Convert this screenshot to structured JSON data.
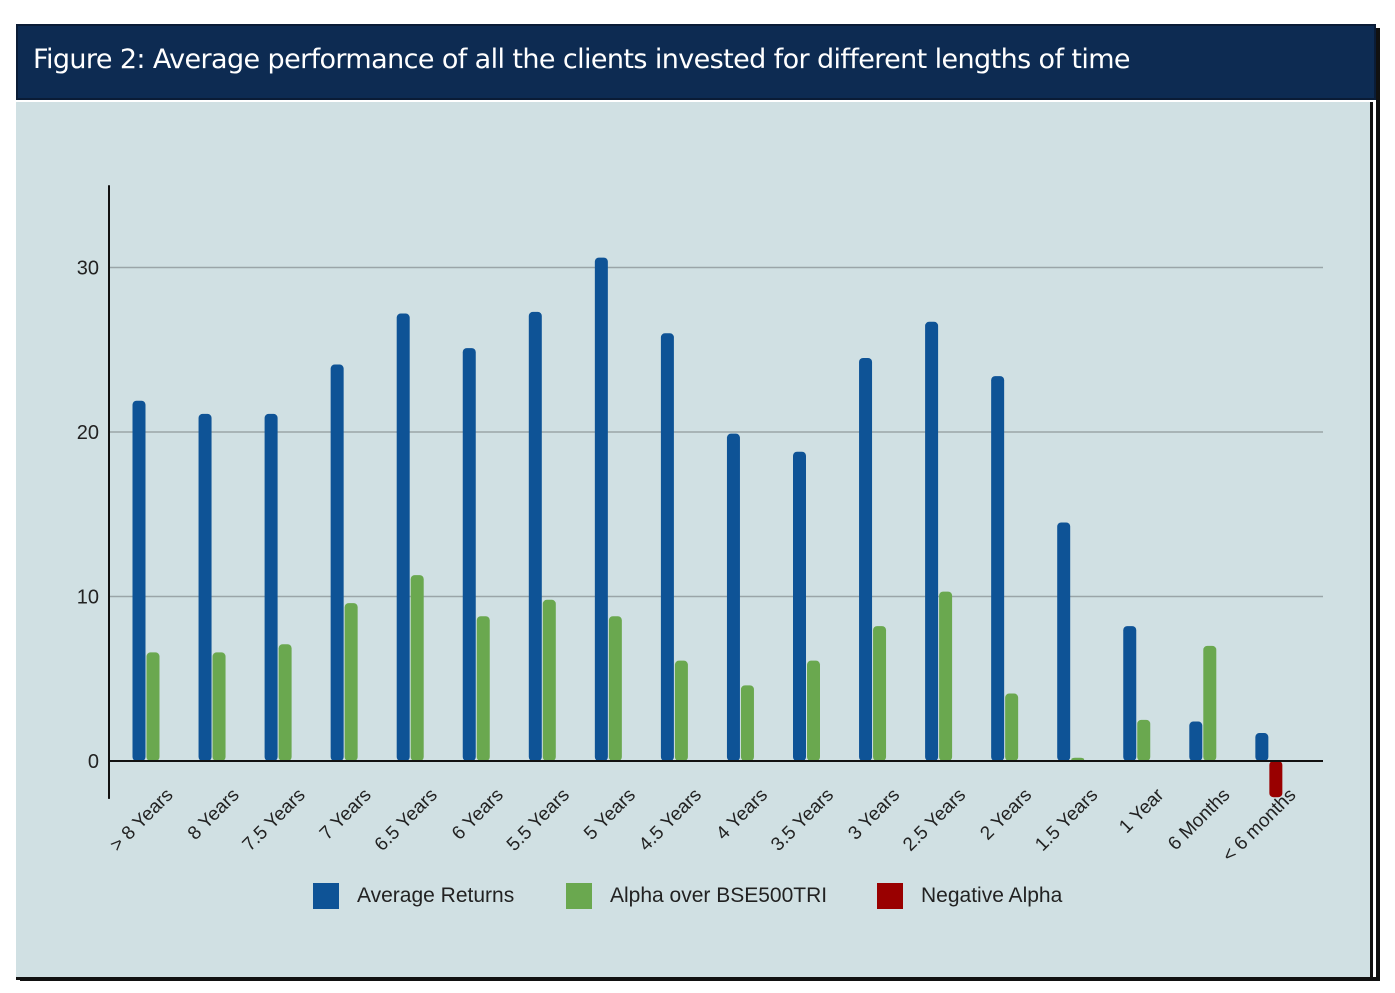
{
  "figure": {
    "title": "Figure 2:  Average performance of all the clients invested for different lengths of time"
  },
  "colors": {
    "average_returns": "#0e5396",
    "alpha": "#6aa84f",
    "negative_alpha": "#990000",
    "panel_background": "#d0e0e3",
    "title_background": "#0d2b52",
    "gridline": "#9aa5a8"
  },
  "chart_data": {
    "type": "bar",
    "title": "Figure 2:  Average performance of all the clients invested for different lengths of time",
    "xlabel": "",
    "ylabel": "",
    "ylim": [
      -2.3,
      35
    ],
    "yticks": [
      0,
      10,
      20,
      30
    ],
    "grid": true,
    "legend_position": "bottom",
    "categories": [
      "> 8 Years",
      "8 Years",
      "7.5 Years",
      "7 Years",
      "6.5 Years",
      "6 Years",
      "5.5 Years",
      "5 Years",
      "4.5 Years",
      "4 Years",
      "3.5 Years",
      "3 Years",
      "2.5 Years",
      "2 Years",
      "1.5 Years",
      "1 Year",
      "6 Months",
      "< 6 months"
    ],
    "series": [
      {
        "name": "Average Returns",
        "values": [
          21.9,
          21.1,
          21.1,
          24.1,
          27.2,
          25.1,
          27.3,
          30.6,
          26.0,
          19.9,
          18.8,
          24.5,
          26.7,
          23.4,
          14.5,
          8.2,
          2.4,
          1.7
        ]
      },
      {
        "name": "Alpha over BSE500TRI",
        "values": [
          6.6,
          6.6,
          7.1,
          9.6,
          11.3,
          8.8,
          9.8,
          8.8,
          6.1,
          4.6,
          6.1,
          8.2,
          10.3,
          4.1,
          0.2,
          2.5,
          7.0,
          null
        ]
      },
      {
        "name": "Negative Alpha",
        "values": [
          null,
          null,
          null,
          null,
          null,
          null,
          null,
          null,
          null,
          null,
          null,
          null,
          null,
          null,
          null,
          null,
          null,
          -2.2
        ]
      }
    ]
  },
  "legend": {
    "items": [
      {
        "label": "Average Returns",
        "color": "#0e5396"
      },
      {
        "label": "Alpha over BSE500TRI",
        "color": "#6aa84f"
      },
      {
        "label": "Negative Alpha",
        "color": "#990000"
      }
    ]
  }
}
